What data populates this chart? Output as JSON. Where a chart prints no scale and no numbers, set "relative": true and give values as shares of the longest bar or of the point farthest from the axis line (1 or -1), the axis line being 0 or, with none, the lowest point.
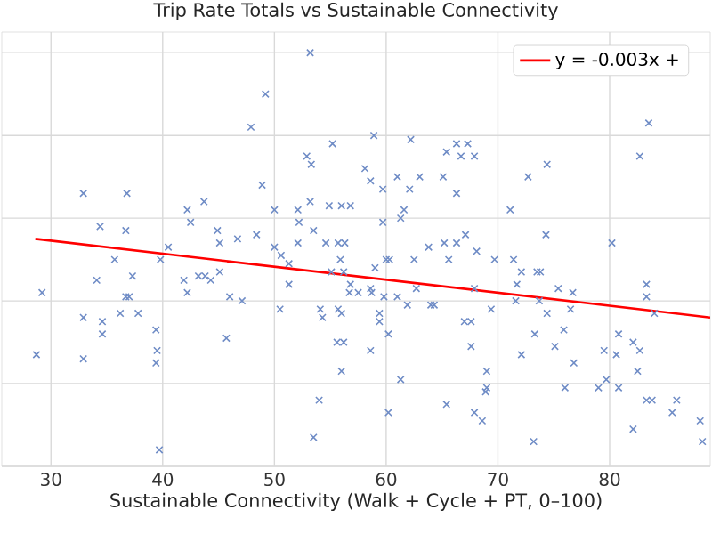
{
  "chart_data": {
    "type": "scatter",
    "title": "Trip Rate Totals vs Sustainable Connectivity",
    "xlabel": "Sustainable Connectivity (Walk + Cycle + PT, 0–100)",
    "relative": true,
    "grid": true,
    "legend": "top right",
    "marker": "cross",
    "xlim": [
      25.6,
      89
    ],
    "xticks": [
      30,
      40,
      50,
      60,
      70,
      80
    ],
    "series": [
      {
        "color": "#6f8cc6",
        "x": [
          53.2,
          49.2,
          47.9,
          83.5,
          82.7,
          32.9,
          36.8,
          48.9,
          55.2,
          58.9,
          62.2,
          52.9,
          53.3,
          66.3,
          67.3,
          65.4,
          66.7,
          67.9,
          58.1,
          58.6,
          61.0,
          63.0,
          65.1,
          62.1,
          59.7,
          66.3,
          72.7,
          74.4,
          43.7,
          42.2,
          42.5,
          50.0,
          53.2,
          52.1,
          54.9,
          56.0,
          56.8,
          52.2,
          53.5,
          59.7,
          61.3,
          61.6,
          71.1,
          34.4,
          36.7,
          44.9,
          45.1,
          46.7,
          48.4,
          50.0,
          52.1,
          54.6,
          55.7,
          56.3,
          40.5,
          63.8,
          65.2,
          67.1,
          66.3,
          68.1,
          69.7,
          71.4,
          74.3,
          80.2,
          35.7,
          39.8,
          50.6,
          29.2,
          28.7,
          32.9,
          32.9,
          34.1,
          34.6,
          34.6,
          37.3,
          36.7,
          37.0,
          36.2,
          37.8,
          39.4,
          39.5,
          39.4,
          39.7,
          41.9,
          42.2,
          43.2,
          43.8,
          44.3,
          45.1,
          46.0,
          47.1,
          45.7,
          51.3,
          51.3,
          50.5,
          54.1,
          54.3,
          54.0,
          53.5,
          55.7,
          56.0,
          55.6,
          56.2,
          56.0,
          55.1,
          56.2,
          55.9,
          56.8,
          56.7,
          57.5,
          58.6,
          58.7,
          59.4,
          59.4,
          58.6,
          60.0,
          60.3,
          59.8,
          61.0,
          61.9,
          60.2,
          61.3,
          60.2,
          59.0,
          62.5,
          62.7,
          64.0,
          64.3,
          65.6,
          67.0,
          67.6,
          67.6,
          65.4,
          67.9,
          68.6,
          68.9,
          69.0,
          69.0,
          69.4,
          67.9,
          72.1,
          71.7,
          71.6,
          72.1,
          73.5,
          73.8,
          73.7,
          73.3,
          74.4,
          75.1,
          75.4,
          76.7,
          75.9,
          76.5,
          76.8,
          76.0,
          79.0,
          79.5,
          79.7,
          80.6,
          80.8,
          80.8,
          82.1,
          82.7,
          82.5,
          82.1,
          83.3,
          83.3,
          84.0,
          83.3,
          83.8,
          85.6,
          86.0,
          88.1,
          88.3,
          73.2
        ],
        "values": [
          1.0,
          0.9,
          0.82,
          0.83,
          0.75,
          0.66,
          0.66,
          0.68,
          0.78,
          0.8,
          0.79,
          0.75,
          0.73,
          0.78,
          0.78,
          0.76,
          0.75,
          0.75,
          0.72,
          0.69,
          0.7,
          0.7,
          0.7,
          0.67,
          0.67,
          0.66,
          0.7,
          0.73,
          0.64,
          0.62,
          0.59,
          0.62,
          0.64,
          0.62,
          0.63,
          0.63,
          0.63,
          0.59,
          0.57,
          0.59,
          0.6,
          0.62,
          0.62,
          0.58,
          0.57,
          0.57,
          0.54,
          0.55,
          0.56,
          0.53,
          0.54,
          0.54,
          0.54,
          0.54,
          0.53,
          0.53,
          0.54,
          0.56,
          0.54,
          0.52,
          0.5,
          0.5,
          0.56,
          0.54,
          0.5,
          0.5,
          0.51,
          0.42,
          0.27,
          0.36,
          0.26,
          0.45,
          0.35,
          0.32,
          0.46,
          0.41,
          0.41,
          0.37,
          0.37,
          0.33,
          0.28,
          0.25,
          0.04,
          0.45,
          0.42,
          0.46,
          0.46,
          0.45,
          0.47,
          0.41,
          0.4,
          0.31,
          0.49,
          0.44,
          0.38,
          0.38,
          0.36,
          0.16,
          0.07,
          0.38,
          0.37,
          0.3,
          0.3,
          0.23,
          0.47,
          0.47,
          0.5,
          0.44,
          0.42,
          0.42,
          0.43,
          0.42,
          0.37,
          0.35,
          0.28,
          0.5,
          0.5,
          0.41,
          0.41,
          0.39,
          0.32,
          0.21,
          0.13,
          0.48,
          0.5,
          0.43,
          0.39,
          0.39,
          0.5,
          0.35,
          0.35,
          0.29,
          0.15,
          0.13,
          0.11,
          0.18,
          0.19,
          0.23,
          0.38,
          0.43,
          0.47,
          0.44,
          0.4,
          0.27,
          0.47,
          0.47,
          0.4,
          0.32,
          0.37,
          0.29,
          0.43,
          0.42,
          0.33,
          0.38,
          0.25,
          0.19,
          0.19,
          0.28,
          0.21,
          0.27,
          0.32,
          0.19,
          0.3,
          0.28,
          0.23,
          0.09,
          0.44,
          0.41,
          0.37,
          0.16,
          0.16,
          0.13,
          0.16,
          0.11,
          0.06,
          0.06
        ]
      },
      {
        "type": "line",
        "name": "y = -0.003x +",
        "color": "#ff0000",
        "marker": "none",
        "x": [
          28.6,
          89
        ],
        "values": [
          0.55,
          0.36
        ]
      }
    ]
  }
}
